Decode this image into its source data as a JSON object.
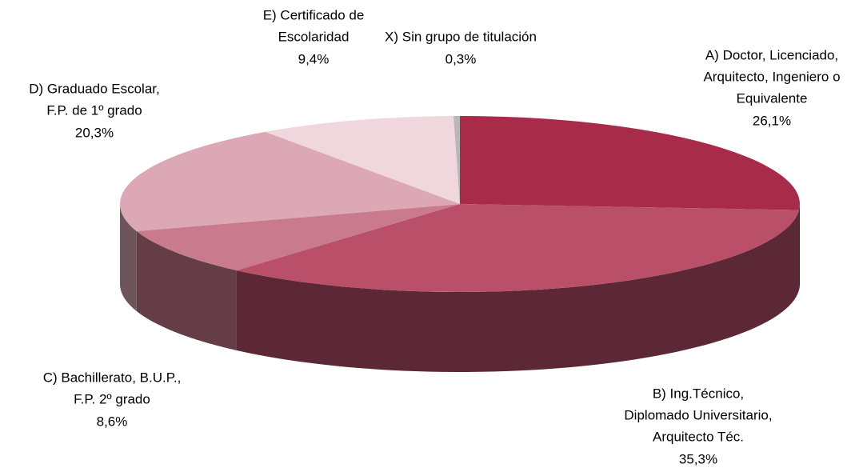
{
  "chart_data": {
    "type": "pie3d",
    "categories": [
      [
        "A) Doctor, Licenciado,",
        "Arquitecto, Ingeniero o",
        "Equivalente"
      ],
      [
        "B) Ing.Técnico,",
        "Diplomado Universitario,",
        "Arquitecto Téc."
      ],
      [
        "C) Bachillerato, B.U.P.,",
        "F.P. 2º grado"
      ],
      [
        "D) Graduado Escolar,",
        "F.P. de 1º grado"
      ],
      [
        "E) Certificado de",
        "Escolaridad"
      ],
      [
        "X) Sin grupo de titulación"
      ]
    ],
    "values": [
      26.1,
      35.3,
      8.6,
      20.3,
      9.4,
      0.3
    ],
    "value_labels": [
      "26,1%",
      "35,3%",
      "8,6%",
      "20,3%",
      "9,4%",
      "0,3%"
    ],
    "colors": [
      "#a92b4a",
      "#b94f69",
      "#c97a8d",
      "#dca8b5",
      "#f0d6dd",
      "#b8b8b8"
    ]
  }
}
